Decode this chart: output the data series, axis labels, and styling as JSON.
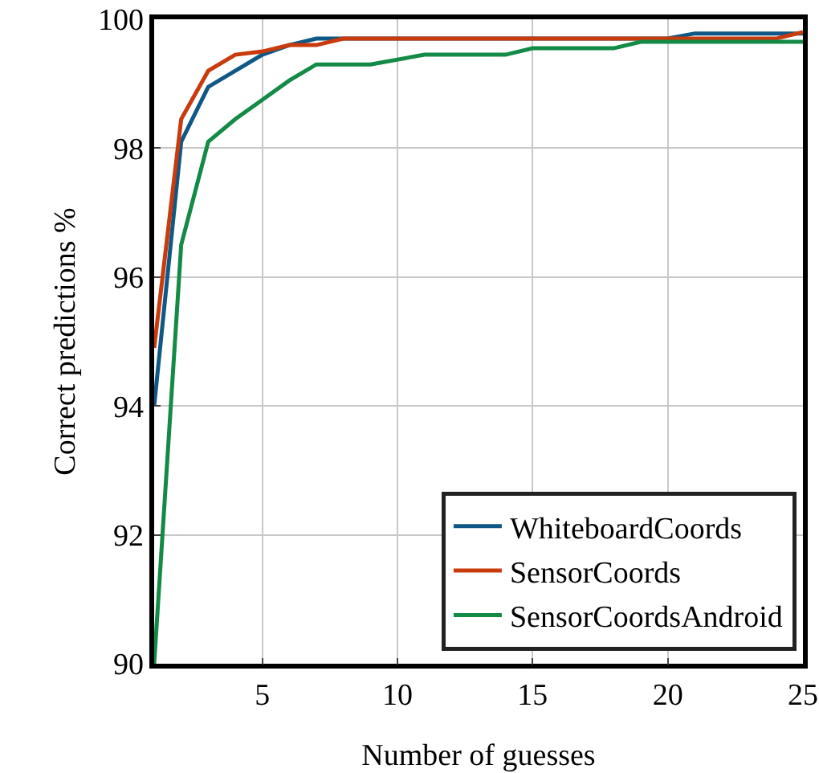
{
  "chart_data": {
    "type": "line",
    "xlabel": "Number of guesses",
    "ylabel": "Correct predictions %",
    "xlim": [
      1,
      25
    ],
    "xticks": [
      5,
      10,
      15,
      20,
      25
    ],
    "ylim": [
      90,
      100
    ],
    "yticks": [
      90,
      92,
      94,
      96,
      98,
      100
    ],
    "grid": true,
    "legend": "bottom right",
    "marker": "none",
    "line_style": "solid",
    "series": [
      {
        "name": "WhiteboardCoords",
        "color": "#0f5784",
        "x": [
          1,
          2,
          3,
          4,
          5,
          6,
          7,
          20,
          21,
          25
        ],
        "values": [
          94.0,
          98.1,
          98.95,
          99.2,
          99.45,
          99.6,
          99.7,
          99.7,
          99.78,
          99.78
        ]
      },
      {
        "name": "SensorCoords",
        "color": "#c93a0c",
        "x": [
          1,
          2,
          3,
          4,
          5,
          6,
          7,
          8,
          24,
          25
        ],
        "values": [
          94.9,
          98.45,
          99.2,
          99.45,
          99.5,
          99.6,
          99.6,
          99.7,
          99.7,
          99.8
        ]
      },
      {
        "name": "SensorCoordsAndroid",
        "color": "#138a45",
        "x": [
          1,
          2,
          3,
          4,
          5,
          6,
          7,
          9,
          11,
          14,
          15,
          18,
          19,
          25
        ],
        "values": [
          90,
          96.5,
          98.1,
          98.45,
          98.75,
          99.05,
          99.3,
          99.3,
          99.45,
          99.45,
          99.55,
          99.55,
          99.65,
          99.65
        ]
      }
    ]
  }
}
